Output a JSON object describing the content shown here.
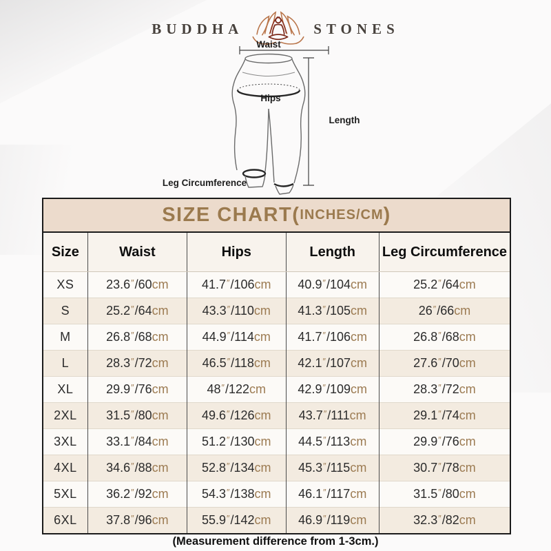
{
  "brand": {
    "word_left": "BUDDHA",
    "word_right": "STONES",
    "logo_icon": "lotus-meditation-icon"
  },
  "diagram": {
    "labels": {
      "waist": "Waist",
      "hips": "Hips",
      "length": "Length",
      "leg_circumference": "Leg Circumference"
    }
  },
  "size_chart": {
    "title_prefix": "SIZE CHART(",
    "title_inner": "INCHES/CM",
    "title_suffix": ")",
    "columns": [
      "Size",
      "Waist",
      "Hips",
      "Length",
      "Leg Circumference"
    ],
    "unit_inch_mark": "″",
    "unit_cm": "cm",
    "measure_keys": [
      "waist",
      "hips",
      "length",
      "leg"
    ],
    "rows": [
      {
        "size": "XS",
        "waist": [
          "23.6",
          "60"
        ],
        "hips": [
          "41.7",
          "106"
        ],
        "length": [
          "40.9",
          "104"
        ],
        "leg": [
          "25.2",
          "64"
        ]
      },
      {
        "size": "S",
        "waist": [
          "25.2",
          "64"
        ],
        "hips": [
          "43.3",
          "110"
        ],
        "length": [
          "41.3",
          "105"
        ],
        "leg": [
          "26",
          "66"
        ]
      },
      {
        "size": "M",
        "waist": [
          "26.8",
          "68"
        ],
        "hips": [
          "44.9",
          "114"
        ],
        "length": [
          "41.7",
          "106"
        ],
        "leg": [
          "26.8",
          "68"
        ]
      },
      {
        "size": "L",
        "waist": [
          "28.3",
          "72"
        ],
        "hips": [
          "46.5",
          "118"
        ],
        "length": [
          "42.1",
          "107"
        ],
        "leg": [
          "27.6",
          "70"
        ]
      },
      {
        "size": "XL",
        "waist": [
          "29.9",
          "76"
        ],
        "hips": [
          "48",
          "122"
        ],
        "length": [
          "42.9",
          "109"
        ],
        "leg": [
          "28.3",
          "72"
        ]
      },
      {
        "size": "2XL",
        "waist": [
          "31.5",
          "80"
        ],
        "hips": [
          "49.6",
          "126"
        ],
        "length": [
          "43.7",
          "111"
        ],
        "leg": [
          "29.1",
          "74"
        ]
      },
      {
        "size": "3XL",
        "waist": [
          "33.1",
          "84"
        ],
        "hips": [
          "51.2",
          "130"
        ],
        "length": [
          "44.5",
          "113"
        ],
        "leg": [
          "29.9",
          "76"
        ]
      },
      {
        "size": "4XL",
        "waist": [
          "34.6",
          "88"
        ],
        "hips": [
          "52.8",
          "134"
        ],
        "length": [
          "45.3",
          "115"
        ],
        "leg": [
          "30.7",
          "78"
        ]
      },
      {
        "size": "5XL",
        "waist": [
          "36.2",
          "92"
        ],
        "hips": [
          "54.3",
          "138"
        ],
        "length": [
          "46.1",
          "117"
        ],
        "leg": [
          "31.5",
          "80"
        ]
      },
      {
        "size": "6XL",
        "waist": [
          "37.8",
          "96"
        ],
        "hips": [
          "55.9",
          "142"
        ],
        "length": [
          "46.9",
          "119"
        ],
        "leg": [
          "32.3",
          "82"
        ]
      }
    ],
    "note": "(Measurement difference from 1-3cm.)"
  },
  "colors": {
    "title_text": "#9b7a4e",
    "title_band_bg": "#ecdbcc",
    "unit_text": "#9c7b52",
    "row_alt_bg": "#f3ebe0",
    "border_dark": "#1a1a1a",
    "lotus_inner": "#7c2a1b",
    "lotus_outer": "#b9754a",
    "brand_text": "#47413c"
  }
}
